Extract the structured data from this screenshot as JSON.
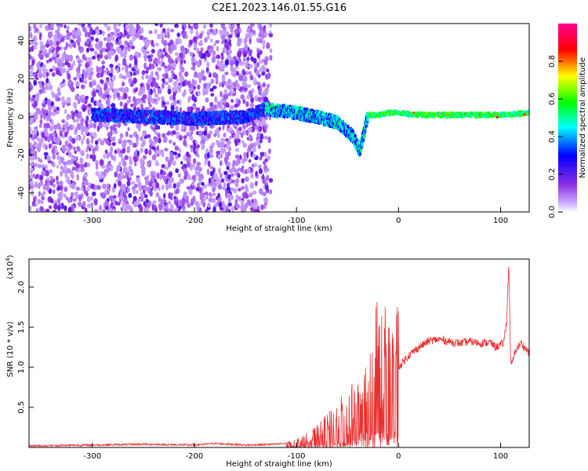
{
  "title": "C2E1.2023.146.01.55.G16",
  "chart_data": [
    {
      "type": "heatmap",
      "xlabel": "Height of straight line (km)",
      "ylabel": "Frequency (Hz)",
      "xlim": [
        -362,
        128
      ],
      "ylim": [
        -50,
        49
      ],
      "x_ticks": [
        -300,
        -200,
        -100,
        0,
        100
      ],
      "x_tick_labels": [
        "-300",
        "-200",
        "-100",
        "0",
        "100"
      ],
      "y_ticks": [
        -40,
        -20,
        0,
        20,
        40
      ],
      "y_tick_labels": [
        "-40",
        "-20",
        "0",
        "20",
        "40"
      ],
      "colorbar": {
        "label": "Normalized spectral amplitude",
        "range": [
          0,
          1
        ],
        "ticks": [
          0,
          0.2,
          0.4,
          0.6,
          0.8
        ],
        "tick_labels": [
          "0.0",
          "0.2",
          "0.4",
          "0.6",
          "0.8"
        ],
        "colors": [
          "#ffffff",
          "#8a2be2",
          "#0000ff",
          "#00ffff",
          "#00ff00",
          "#ffff00",
          "#ff0000",
          "#ff00aa"
        ]
      },
      "ridge": {
        "x": [
          -290,
          -250,
          -200,
          -150,
          -130,
          -100,
          -80,
          -60,
          -45,
          -38,
          -30,
          -20,
          -10,
          0,
          20,
          50,
          80,
          100,
          128
        ],
        "y": [
          1,
          0,
          -1,
          0,
          4,
          2,
          0,
          -3,
          -10,
          -18,
          1,
          1,
          2,
          2,
          1,
          1,
          1,
          1,
          2
        ]
      }
    },
    {
      "type": "line",
      "xlabel": "Height of straight line (km)",
      "ylabel": "SNR (10 * v/v)",
      "multiplier_label": "(x10",
      "multiplier_exp": "4",
      "multiplier_close": ")",
      "xlim": [
        -362,
        128
      ],
      "ylim": [
        0,
        2.35
      ],
      "x_ticks": [
        -300,
        -200,
        -100,
        0,
        100
      ],
      "x_tick_labels": [
        "-300",
        "-200",
        "-100",
        "0",
        "100"
      ],
      "y_ticks": [
        0.5,
        1.0,
        1.5,
        2.0
      ],
      "y_tick_labels": [
        "0.5",
        "1.0",
        "1.5",
        "2.0"
      ],
      "color": "#e83030",
      "series": [
        {
          "x": [
            -362,
            -300,
            -250,
            -200,
            -180,
            -150,
            -120,
            -100,
            -90,
            -80,
            -70,
            -60,
            -50,
            -40,
            -30,
            -25,
            -20,
            -15,
            -10,
            -5,
            0,
            10,
            20,
            30,
            40,
            50,
            60,
            70,
            80,
            90,
            95,
            100,
            103,
            106,
            108,
            110,
            115,
            120,
            128
          ],
          "y": [
            0.02,
            0.03,
            0.04,
            0.03,
            0.05,
            0.03,
            0.04,
            0.06,
            0.1,
            0.15,
            0.22,
            0.3,
            0.4,
            0.45,
            0.55,
            0.8,
            1.1,
            1.0,
            0.9,
            1.05,
            1.0,
            1.15,
            1.25,
            1.33,
            1.35,
            1.32,
            1.3,
            1.32,
            1.3,
            1.31,
            1.25,
            1.28,
            1.3,
            1.6,
            2.3,
            1.0,
            1.22,
            1.3,
            1.18
          ]
        }
      ]
    }
  ]
}
